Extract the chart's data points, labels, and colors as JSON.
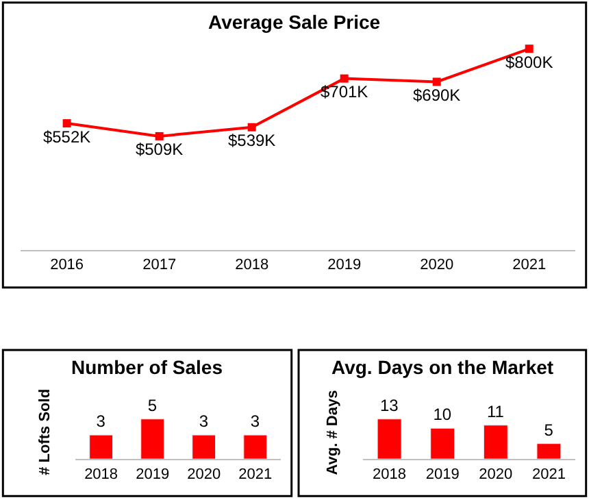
{
  "chart_data": [
    {
      "type": "line",
      "title": "Average Sale Price",
      "categories": [
        "2016",
        "2017",
        "2018",
        "2019",
        "2020",
        "2021"
      ],
      "values": [
        552,
        509,
        539,
        701,
        690,
        800
      ],
      "value_labels": [
        "$552K",
        "$509K",
        "$539K",
        "$701K",
        "$690K",
        "$800K"
      ],
      "color": "#ff0000",
      "marker": "square"
    },
    {
      "type": "bar",
      "title": "Number of Sales",
      "ylabel": "# Lofts Sold",
      "categories": [
        "2018",
        "2019",
        "2020",
        "2021"
      ],
      "values": [
        3,
        5,
        3,
        3
      ],
      "color": "#ff0000",
      "data_labels": true
    },
    {
      "type": "bar",
      "title": "Avg. Days on the Market",
      "ylabel": "Avg. # Days",
      "categories": [
        "2018",
        "2019",
        "2020",
        "2021"
      ],
      "values": [
        13,
        10,
        11,
        5
      ],
      "color": "#ff0000",
      "data_labels": true
    }
  ]
}
